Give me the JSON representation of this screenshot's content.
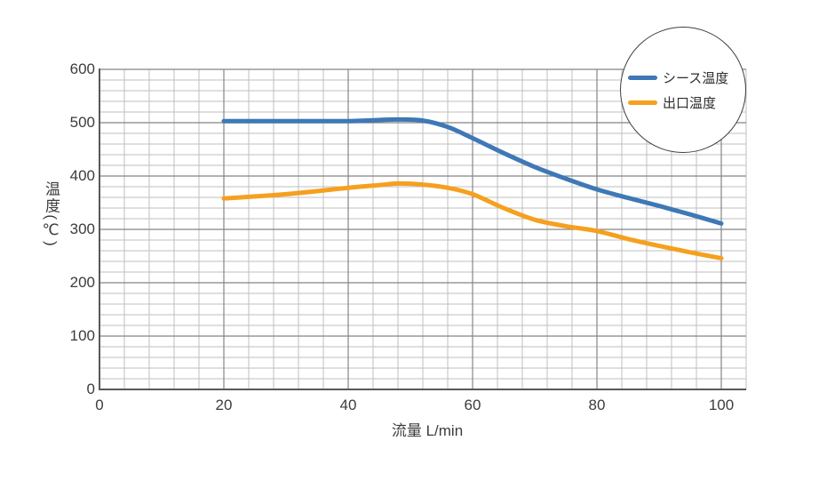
{
  "page": {
    "background": "#ffffff",
    "text_color": "#3c3c3c"
  },
  "chart_data": {
    "type": "line",
    "title": "",
    "xlabel": "流量 L/min",
    "ylabel": "温度(℃)",
    "xlim": [
      0,
      104
    ],
    "ylim": [
      0,
      600
    ],
    "x_ticks": [
      0,
      20,
      40,
      60,
      80,
      100
    ],
    "y_ticks": [
      0,
      100,
      200,
      300,
      400,
      500,
      600
    ],
    "x_minor_step": 4,
    "y_minor_step": 20,
    "grid": {
      "show": true,
      "minor_color": "#bfbfbf",
      "major_color": "#858585",
      "axis_color": "#595959"
    },
    "legend": {
      "shape": "circle",
      "position": "top-right",
      "border_color": "#3f3f3f",
      "items": [
        {
          "label": "シース温度",
          "color": "#3E78B6"
        },
        {
          "label": "出口温度",
          "color": "#F5A01E"
        }
      ]
    },
    "series": [
      {
        "name": "シース温度",
        "color": "#3E78B6",
        "x": [
          20,
          30,
          40,
          45,
          48,
          52,
          56,
          60,
          65,
          70,
          75,
          80,
          85,
          90,
          95,
          100
        ],
        "values": [
          503,
          503,
          503,
          505,
          506,
          504,
          492,
          471,
          443,
          417,
          395,
          375,
          359,
          344,
          328,
          311
        ]
      },
      {
        "name": "出口温度",
        "color": "#F5A01E",
        "x": [
          20,
          30,
          40,
          45,
          48,
          52,
          56,
          60,
          65,
          70,
          75,
          80,
          85,
          90,
          95,
          100
        ],
        "values": [
          358,
          366,
          378,
          383,
          386,
          384,
          378,
          366,
          340,
          318,
          306,
          297,
          282,
          269,
          257,
          246
        ]
      }
    ]
  }
}
